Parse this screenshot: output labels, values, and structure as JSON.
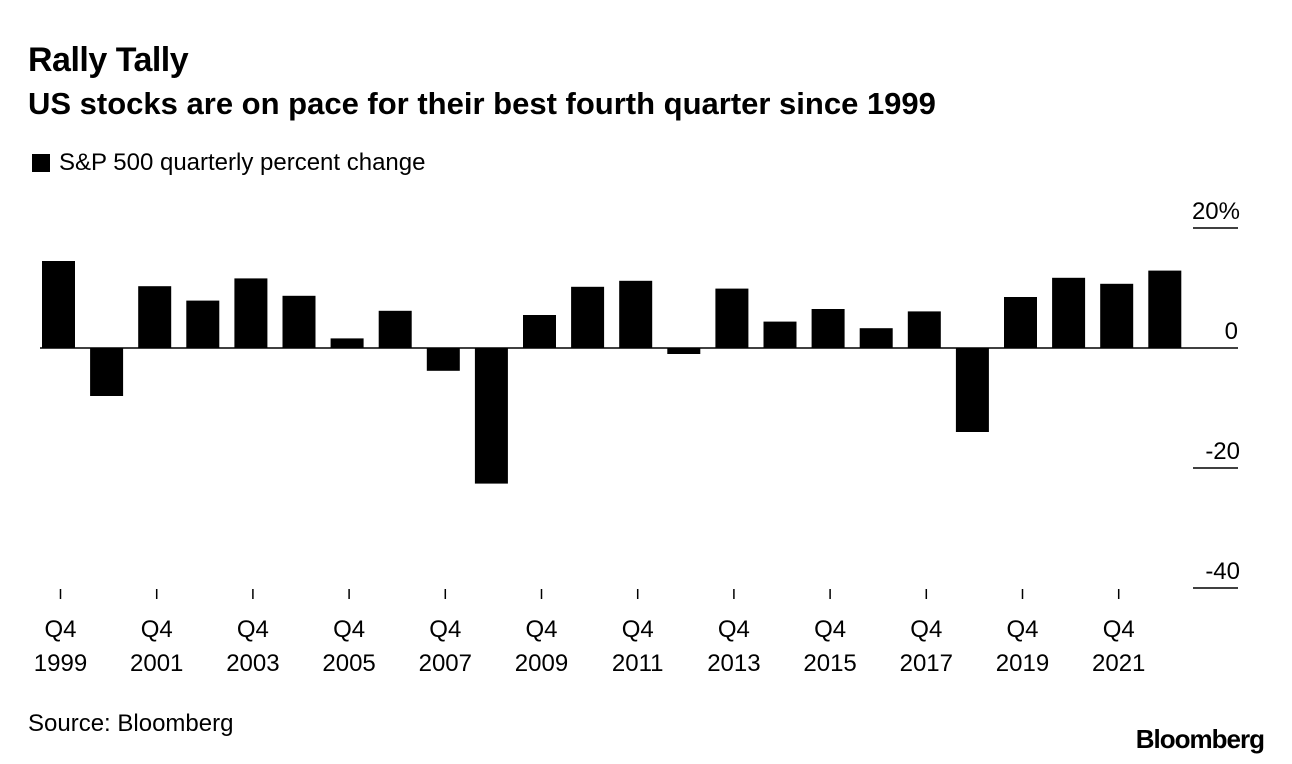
{
  "title": "Rally Tally",
  "subtitle": "US stocks are on pace for their best fourth quarter since 1999",
  "source": "Source: Bloomberg",
  "brand": "Bloomberg",
  "colors": {
    "bar": "#000000",
    "axis": "#000000",
    "background": "#ffffff"
  },
  "chart_data": {
    "type": "bar",
    "title": "Rally Tally",
    "subtitle": "US stocks are on pace for their best fourth quarter since 1999",
    "legend": [
      {
        "label": "S&P 500 quarterly percent change",
        "position": "top-left"
      }
    ],
    "categories": [
      "Q4 1999",
      "Q4 2000",
      "Q4 2001",
      "Q4 2002",
      "Q4 2003",
      "Q4 2004",
      "Q4 2005",
      "Q4 2006",
      "Q4 2007",
      "Q4 2008",
      "Q4 2009",
      "Q4 2010",
      "Q4 2011",
      "Q4 2012",
      "Q4 2013",
      "Q4 2014",
      "Q4 2015",
      "Q4 2016",
      "Q4 2017",
      "Q4 2018",
      "Q4 2019",
      "Q4 2020",
      "Q4 2021",
      "Q4 2022"
    ],
    "series": [
      {
        "name": "S&P 500 quarterly percent change",
        "values": [
          14.5,
          -8.0,
          10.3,
          7.9,
          11.6,
          8.7,
          1.6,
          6.2,
          -3.8,
          -22.6,
          5.5,
          10.2,
          11.2,
          -1.0,
          9.9,
          4.4,
          6.5,
          3.3,
          6.1,
          -14.0,
          8.5,
          11.7,
          10.7,
          12.9
        ]
      }
    ],
    "ylim": [
      -40,
      20
    ],
    "yticks": [
      {
        "value": 20,
        "label": "20%"
      },
      {
        "value": 0,
        "label": "0"
      },
      {
        "value": -20,
        "label": "-20"
      },
      {
        "value": -40,
        "label": "-40"
      }
    ],
    "xticks": [
      {
        "label_top": "Q4",
        "label_bottom": "1999",
        "index": 0
      },
      {
        "label_top": "Q4",
        "label_bottom": "2001",
        "index": 2
      },
      {
        "label_top": "Q4",
        "label_bottom": "2003",
        "index": 4
      },
      {
        "label_top": "Q4",
        "label_bottom": "2005",
        "index": 6
      },
      {
        "label_top": "Q4",
        "label_bottom": "2007",
        "index": 8
      },
      {
        "label_top": "Q4",
        "label_bottom": "2009",
        "index": 10
      },
      {
        "label_top": "Q4",
        "label_bottom": "2011",
        "index": 12
      },
      {
        "label_top": "Q4",
        "label_bottom": "2013",
        "index": 14
      },
      {
        "label_top": "Q4",
        "label_bottom": "2015",
        "index": 16
      },
      {
        "label_top": "Q4",
        "label_bottom": "2017",
        "index": 18
      },
      {
        "label_top": "Q4",
        "label_bottom": "2019",
        "index": 20
      },
      {
        "label_top": "Q4",
        "label_bottom": "2021",
        "index": 22
      }
    ],
    "xlabel": "",
    "ylabel": "",
    "grid": false
  }
}
